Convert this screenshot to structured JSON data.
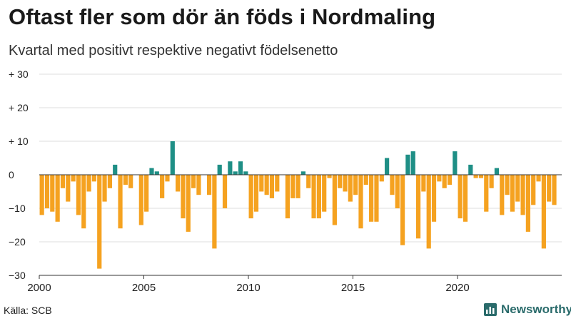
{
  "title": "Oftast fler som dör än föds i Nordmaling",
  "subtitle": "Kvartal med positivt respektive negativt födelsenetto",
  "source": "Källa: SCB",
  "brand": "Newsworthy",
  "colors": {
    "positive": "#1f8f86",
    "negative": "#f5a220",
    "grid": "#dddddd",
    "axis": "#333333",
    "brand": "#2a6b6b"
  },
  "chart_data": {
    "type": "bar",
    "title": "Oftast fler som dör än föds i Nordmaling",
    "subtitle": "Kvartal med positivt respektive negativt födelsenetto",
    "xlabel": "",
    "ylabel": "",
    "ylim": [
      -30,
      30
    ],
    "yticks": [
      {
        "value": 30,
        "label": "+ 30"
      },
      {
        "value": 20,
        "label": "+ 20"
      },
      {
        "value": 10,
        "label": "+ 10"
      },
      {
        "value": 0,
        "label": "0"
      },
      {
        "value": -10,
        "label": "−10"
      },
      {
        "value": -20,
        "label": "−20"
      },
      {
        "value": -30,
        "label": "−30"
      }
    ],
    "xticks": [
      {
        "year": 2000,
        "label": "2000"
      },
      {
        "year": 2005,
        "label": "2005"
      },
      {
        "year": 2010,
        "label": "2010"
      },
      {
        "year": 2015,
        "label": "2015"
      },
      {
        "year": 2020,
        "label": "2020"
      }
    ],
    "start_year": 2000,
    "period": "quarter",
    "grid": true,
    "values": [
      -12,
      -10,
      -11,
      -14,
      -4,
      -8,
      -2,
      -12,
      -16,
      -5,
      -2,
      -28,
      -8,
      -4,
      3,
      -16,
      -3,
      -4,
      0,
      -15,
      -11,
      2,
      1,
      -7,
      -2,
      10,
      -5,
      -13,
      -17,
      -4,
      -6,
      0,
      -6,
      -22,
      3,
      -10,
      4,
      1,
      4,
      1,
      -13,
      -11,
      -5,
      -6,
      -7,
      -5,
      0,
      -13,
      -7,
      -7,
      1,
      -4,
      -13,
      -13,
      -11,
      -1,
      -15,
      -4,
      -5,
      -8,
      -6,
      -16,
      -3,
      -14,
      -14,
      -2,
      5,
      -6,
      -10,
      -21,
      6,
      7,
      -19,
      -5,
      -22,
      -14,
      -2,
      -4,
      -3,
      7,
      -13,
      -14,
      3,
      -1,
      -1,
      -11,
      -4,
      2,
      -12,
      -6,
      -11,
      -8,
      -12,
      -17,
      -9,
      -2,
      -22,
      -8,
      -9
    ]
  }
}
